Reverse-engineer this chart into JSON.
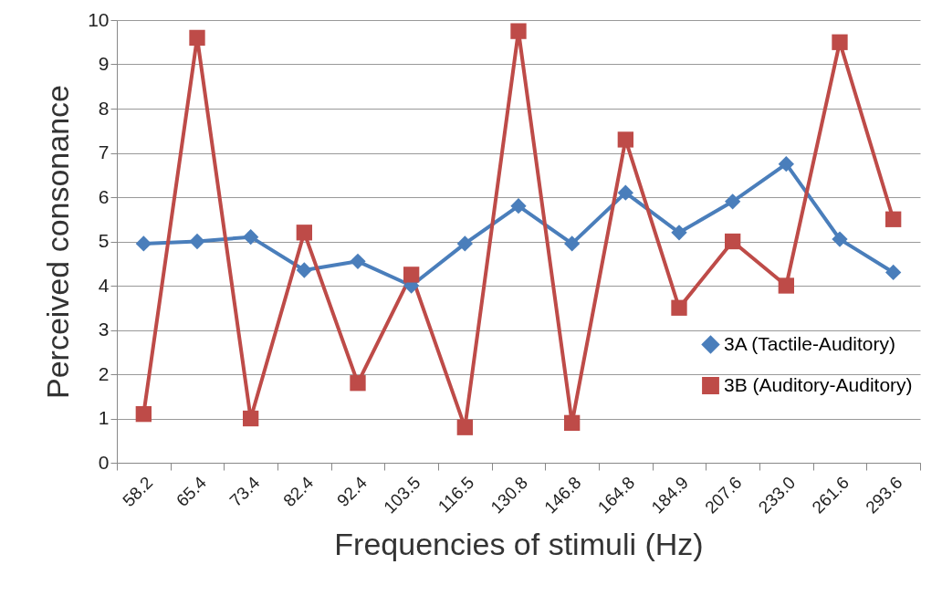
{
  "chart_data": {
    "type": "line",
    "xlabel": "Frequencies of stimuli (Hz)",
    "ylabel": "Perceived consonance",
    "categories": [
      "58.2",
      "65.4",
      "73.4",
      "82.4",
      "92.4",
      "103.5",
      "116.5",
      "130.8",
      "146.8",
      "164.8",
      "184.9",
      "207.6",
      "233.0",
      "261.6",
      "293.6"
    ],
    "series": [
      {
        "name": "3A (Tactile-Auditory)",
        "color": "#4a7ebb",
        "marker": "diamond",
        "values": [
          4.95,
          5.0,
          5.1,
          4.35,
          4.55,
          4.0,
          4.95,
          5.8,
          4.95,
          6.1,
          5.2,
          5.9,
          6.75,
          5.05,
          4.3
        ]
      },
      {
        "name": "3B (Auditory-Auditory)",
        "color": "#be4b48",
        "marker": "square",
        "values": [
          1.1,
          9.6,
          1.0,
          5.2,
          1.8,
          4.25,
          0.8,
          9.75,
          0.9,
          7.3,
          3.5,
          5.0,
          4.0,
          9.5,
          5.5
        ]
      }
    ],
    "ylim": [
      0,
      10
    ],
    "yticks": [
      0,
      1,
      2,
      3,
      4,
      5,
      6,
      7,
      8,
      9,
      10
    ],
    "grid": "y",
    "legend": "bottom right",
    "line_style": "solid"
  }
}
